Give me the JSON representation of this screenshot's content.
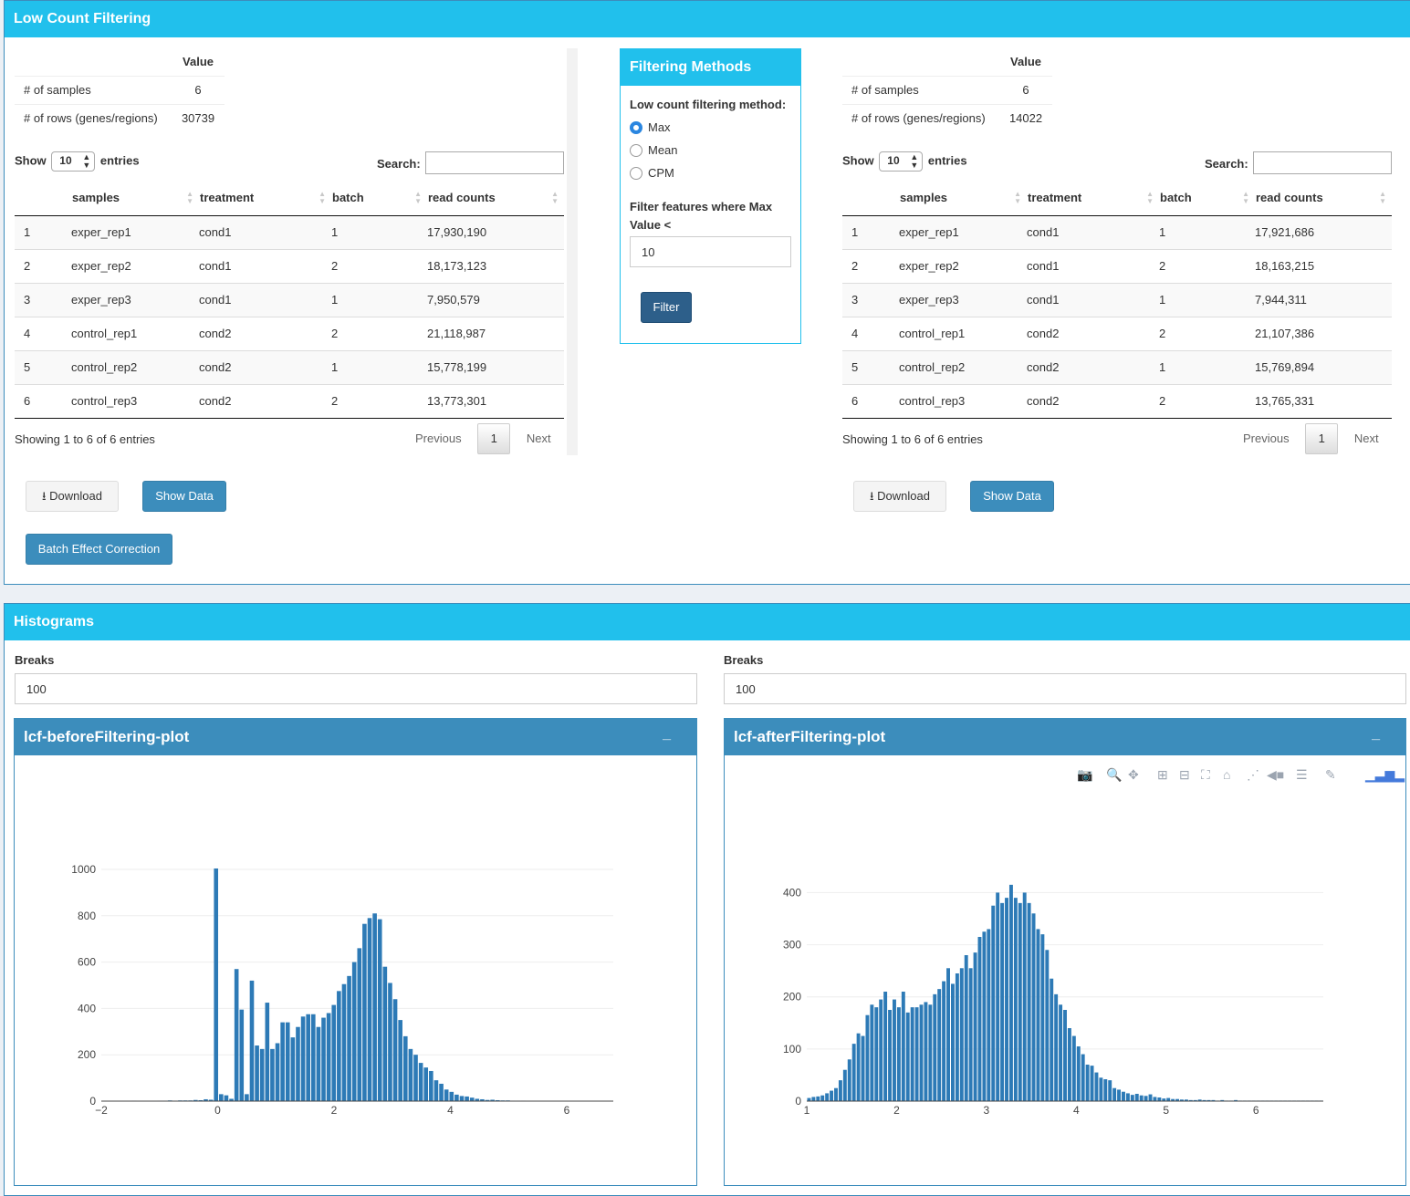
{
  "lcf": {
    "title": "Low Count Filtering",
    "before": {
      "summary": {
        "value_header": "Value",
        "rows": [
          {
            "label": "# of samples",
            "value": "6"
          },
          {
            "label": "# of rows (genes/regions)",
            "value": "30739"
          }
        ]
      },
      "show_label": "Show",
      "entries_value": "10",
      "entries_label": "entries",
      "search_label": "Search:",
      "columns": [
        "samples",
        "treatment",
        "batch",
        "read counts"
      ],
      "rows": [
        [
          "1",
          "exper_rep1",
          "cond1",
          "1",
          "17,930,190"
        ],
        [
          "2",
          "exper_rep2",
          "cond1",
          "2",
          "18,173,123"
        ],
        [
          "3",
          "exper_rep3",
          "cond1",
          "1",
          "7,950,579"
        ],
        [
          "4",
          "control_rep1",
          "cond2",
          "2",
          "21,118,987"
        ],
        [
          "5",
          "control_rep2",
          "cond2",
          "1",
          "15,778,199"
        ],
        [
          "6",
          "control_rep3",
          "cond2",
          "2",
          "13,773,301"
        ]
      ],
      "info": "Showing 1 to 6 of 6 entries",
      "prev": "Previous",
      "page": "1",
      "next": "Next",
      "download": "Download",
      "show_data": "Show Data"
    },
    "after": {
      "summary": {
        "value_header": "Value",
        "rows": [
          {
            "label": "# of samples",
            "value": "6"
          },
          {
            "label": "# of rows (genes/regions)",
            "value": "14022"
          }
        ]
      },
      "show_label": "Show",
      "entries_value": "10",
      "entries_label": "entries",
      "search_label": "Search:",
      "columns": [
        "samples",
        "treatment",
        "batch",
        "read counts"
      ],
      "rows": [
        [
          "1",
          "exper_rep1",
          "cond1",
          "1",
          "17,921,686"
        ],
        [
          "2",
          "exper_rep2",
          "cond1",
          "2",
          "18,163,215"
        ],
        [
          "3",
          "exper_rep3",
          "cond1",
          "1",
          "7,944,311"
        ],
        [
          "4",
          "control_rep1",
          "cond2",
          "2",
          "21,107,386"
        ],
        [
          "5",
          "control_rep2",
          "cond2",
          "1",
          "15,769,894"
        ],
        [
          "6",
          "control_rep3",
          "cond2",
          "2",
          "13,765,331"
        ]
      ],
      "info": "Showing 1 to 6 of 6 entries",
      "prev": "Previous",
      "page": "1",
      "next": "Next",
      "download": "Download",
      "show_data": "Show Data"
    },
    "batch_button": "Batch Effect Correction",
    "methods": {
      "title": "Filtering Methods",
      "method_label": "Low count filtering method:",
      "options": [
        "Max",
        "Mean",
        "CPM"
      ],
      "selected": "Max",
      "threshold_label": "Filter features where Max Value <",
      "threshold_value": "10",
      "filter_button": "Filter"
    }
  },
  "histograms": {
    "title": "Histograms",
    "left": {
      "breaks_label": "Breaks",
      "breaks_value": "100",
      "plot_title": "lcf-beforeFiltering-plot",
      "minimize": "_"
    },
    "right": {
      "breaks_label": "Breaks",
      "breaks_value": "100",
      "plot_title": "lcf-afterFiltering-plot",
      "minimize": "_"
    },
    "modebar_icons": [
      "camera-icon",
      "zoom-icon",
      "pan-icon",
      "zoom-in-icon",
      "zoom-out-icon",
      "autoscale-icon",
      "home-icon",
      "spike-lines-icon",
      "hover-closest-icon",
      "hover-compare-icon",
      "edit-chart-icon",
      "plotly-logo-icon"
    ],
    "bar_color": "#2d7ab6"
  },
  "chart_data": [
    {
      "type": "bar",
      "title": "",
      "xlabel": "",
      "ylabel": "",
      "xlim": [
        -2,
        6.8
      ],
      "ylim": [
        0,
        1000
      ],
      "xticks": [
        "−2",
        "0",
        "2",
        "4",
        "6"
      ],
      "yticks": [
        "0",
        "200",
        "400",
        "600",
        "800",
        "1000"
      ],
      "bin_width": 0.088,
      "x_start": -1.48,
      "values": [
        2,
        1,
        1,
        0,
        1,
        2,
        2,
        3,
        2,
        3,
        3,
        3,
        5,
        4,
        8,
        6,
        1004,
        30,
        25,
        10,
        570,
        395,
        30,
        520,
        240,
        225,
        425,
        225,
        250,
        340,
        340,
        275,
        320,
        365,
        375,
        375,
        320,
        360,
        380,
        415,
        475,
        505,
        540,
        600,
        660,
        765,
        790,
        810,
        785,
        580,
        510,
        440,
        350,
        280,
        225,
        200,
        165,
        145,
        130,
        90,
        75,
        50,
        40,
        28,
        22,
        20,
        15,
        10,
        8,
        5,
        6,
        4,
        3,
        3,
        2,
        2,
        2,
        1,
        1,
        1,
        1,
        1,
        1,
        1
      ]
    },
    {
      "type": "bar",
      "title": "",
      "xlabel": "",
      "ylabel": "",
      "xlim": [
        1,
        6.75
      ],
      "ylim": [
        0,
        420
      ],
      "xticks": [
        "1",
        "2",
        "3",
        "4",
        "5",
        "6"
      ],
      "yticks": [
        "0",
        "100",
        "200",
        "300",
        "400"
      ],
      "bin_width": 0.05,
      "x_start": 1.0,
      "values": [
        6,
        8,
        9,
        11,
        15,
        20,
        25,
        40,
        60,
        80,
        110,
        130,
        125,
        165,
        185,
        180,
        195,
        210,
        175,
        195,
        180,
        210,
        170,
        180,
        180,
        185,
        190,
        185,
        205,
        215,
        230,
        255,
        225,
        245,
        255,
        280,
        255,
        285,
        315,
        325,
        330,
        375,
        400,
        380,
        390,
        415,
        390,
        380,
        400,
        380,
        360,
        330,
        320,
        290,
        235,
        205,
        185,
        175,
        140,
        125,
        105,
        90,
        70,
        68,
        55,
        45,
        42,
        40,
        25,
        22,
        18,
        15,
        12,
        14,
        11,
        10,
        13,
        8,
        7,
        5,
        6,
        4,
        4,
        3,
        3,
        2,
        2,
        3,
        2,
        2,
        2,
        1,
        2,
        1,
        1,
        2,
        1,
        1,
        1,
        1,
        1,
        1,
        1,
        1,
        1,
        1,
        1,
        1,
        1,
        1,
        1,
        1,
        1,
        1,
        1
      ]
    }
  ]
}
